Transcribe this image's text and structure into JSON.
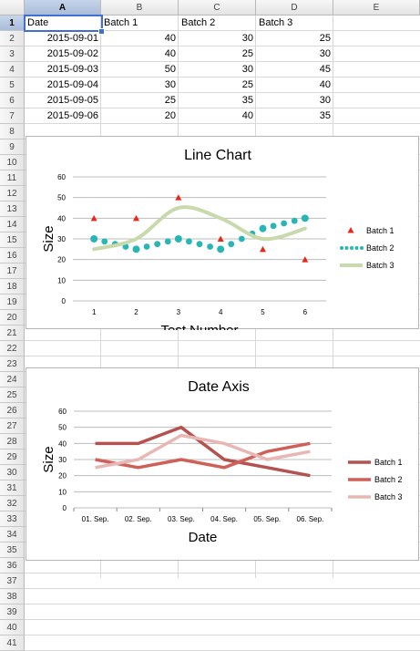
{
  "spreadsheet": {
    "columns": [
      "A",
      "B",
      "C",
      "D",
      "E"
    ],
    "rows": [
      "1",
      "2",
      "3",
      "4",
      "5",
      "6",
      "7",
      "8",
      "9",
      "10",
      "11",
      "12",
      "13",
      "14",
      "15",
      "16",
      "17",
      "18",
      "19",
      "20",
      "21",
      "22",
      "23",
      "24",
      "25",
      "26",
      "27",
      "28",
      "29",
      "30",
      "31",
      "32",
      "33",
      "34",
      "35",
      "36",
      "37",
      "38",
      "39",
      "40",
      "41"
    ],
    "selected_cell": "A1",
    "header": [
      "Date",
      "Batch 1",
      "Batch 2",
      "Batch 3"
    ],
    "data": [
      [
        "2015-09-01",
        "40",
        "30",
        "25"
      ],
      [
        "2015-09-02",
        "40",
        "25",
        "30"
      ],
      [
        "2015-09-03",
        "50",
        "30",
        "45"
      ],
      [
        "2015-09-04",
        "30",
        "25",
        "40"
      ],
      [
        "2015-09-05",
        "25",
        "35",
        "30"
      ],
      [
        "2015-09-06",
        "20",
        "40",
        "35"
      ]
    ]
  },
  "chart_data": [
    {
      "type": "line",
      "title": "Line Chart",
      "xlabel": "Test Number",
      "ylabel": "Size",
      "x": [
        1,
        2,
        3,
        4,
        5,
        6
      ],
      "xlim": [
        0.5,
        6.5
      ],
      "ylim": [
        0,
        60
      ],
      "yticks": [
        0,
        10,
        20,
        30,
        40,
        50,
        60
      ],
      "grid": true,
      "legend": "right",
      "series": [
        {
          "name": "Batch 1",
          "values": [
            40,
            40,
            50,
            30,
            25,
            20
          ],
          "style": "markers-triangle",
          "color": "#e8261b"
        },
        {
          "name": "Batch 2",
          "values": [
            30,
            25,
            30,
            25,
            35,
            40
          ],
          "style": "dotted",
          "color": "#27b5b5"
        },
        {
          "name": "Batch 3",
          "values": [
            25,
            30,
            45,
            40,
            30,
            35
          ],
          "style": "smooth",
          "color": "#c8d9ab"
        }
      ]
    },
    {
      "type": "line",
      "title": "Date Axis",
      "xlabel": "Date",
      "ylabel": "Size",
      "categories": [
        "01. Sep.",
        "02. Sep.",
        "03. Sep.",
        "04. Sep.",
        "05. Sep.",
        "06. Sep."
      ],
      "ylim": [
        0,
        60
      ],
      "yticks": [
        0,
        10,
        20,
        30,
        40,
        50,
        60
      ],
      "grid": true,
      "legend": "right",
      "series": [
        {
          "name": "Batch 1",
          "values": [
            40,
            40,
            50,
            30,
            25,
            20
          ],
          "color": "#b5514e"
        },
        {
          "name": "Batch 2",
          "values": [
            30,
            25,
            30,
            25,
            35,
            40
          ],
          "color": "#cf6058"
        },
        {
          "name": "Batch 3",
          "values": [
            25,
            30,
            45,
            40,
            30,
            35
          ],
          "color": "#e9b7b3"
        }
      ]
    }
  ]
}
